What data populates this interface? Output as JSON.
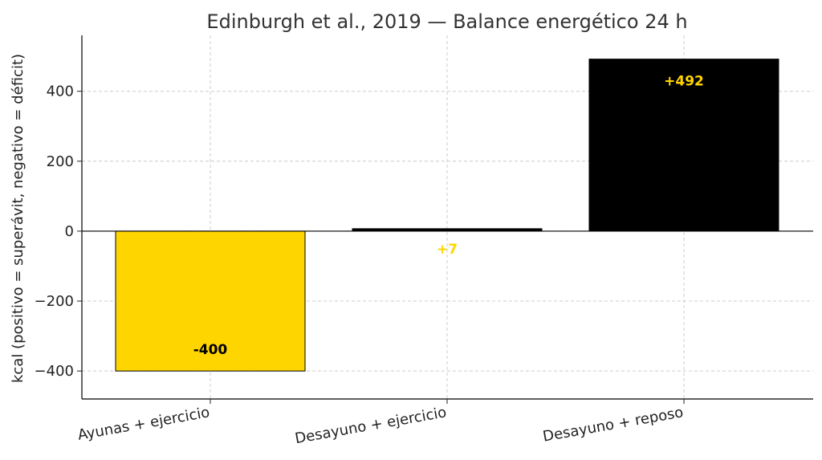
{
  "chart_data": {
    "type": "bar",
    "title": "Edinburgh et al., 2019 — Balance energético 24 h",
    "xlabel": "",
    "ylabel": "kcal (positivo = superávit, negativo = déficit)",
    "categories": [
      "Ayunas + ejercicio",
      "Desayuno + ejercicio",
      "Desayuno + reposo"
    ],
    "values": [
      -400,
      7,
      492
    ],
    "data_labels": [
      "-400",
      "+7",
      "+492"
    ],
    "bar_colors": [
      "#FFD500",
      "#000000",
      "#000000"
    ],
    "label_colors": [
      "#000000",
      "#FFD500",
      "#FFD500"
    ],
    "ylim": [
      -480,
      560
    ],
    "yticks": [
      -400,
      -200,
      0,
      200,
      400
    ],
    "ytick_labels": [
      "−400",
      "−200",
      "0",
      "200",
      "400"
    ],
    "grid": true,
    "zero_line": true
  }
}
